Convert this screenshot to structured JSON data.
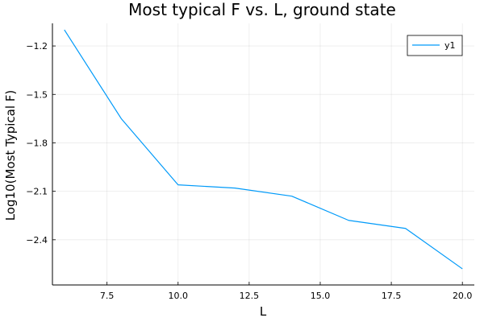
{
  "chart_data": {
    "type": "line",
    "title": "Most typical F vs. L, ground state",
    "xlabel": "L",
    "ylabel": "Log10(Most Typical F)",
    "xlim": [
      5.58,
      20.42
    ],
    "ylim": [
      -2.68,
      -1.06
    ],
    "xticks": [
      7.5,
      10.0,
      12.5,
      15.0,
      17.5,
      20.0
    ],
    "xtick_labels": [
      "7.5",
      "10.0",
      "12.5",
      "15.0",
      "17.5",
      "20.0"
    ],
    "yticks": [
      -2.4,
      -2.1,
      -1.8,
      -1.5,
      -1.2
    ],
    "ytick_labels": [
      "−2.4",
      "−2.1",
      "−1.8",
      "−1.5",
      "−1.2"
    ],
    "grid": true,
    "legend_position": "top-right",
    "series": [
      {
        "name": "y1",
        "color": "#009af9",
        "x": [
          6,
          8,
          10,
          12,
          14,
          16,
          18,
          20
        ],
        "y": [
          -1.1,
          -1.65,
          -2.06,
          -2.08,
          -2.13,
          -2.28,
          -2.33,
          -2.58
        ]
      }
    ]
  }
}
